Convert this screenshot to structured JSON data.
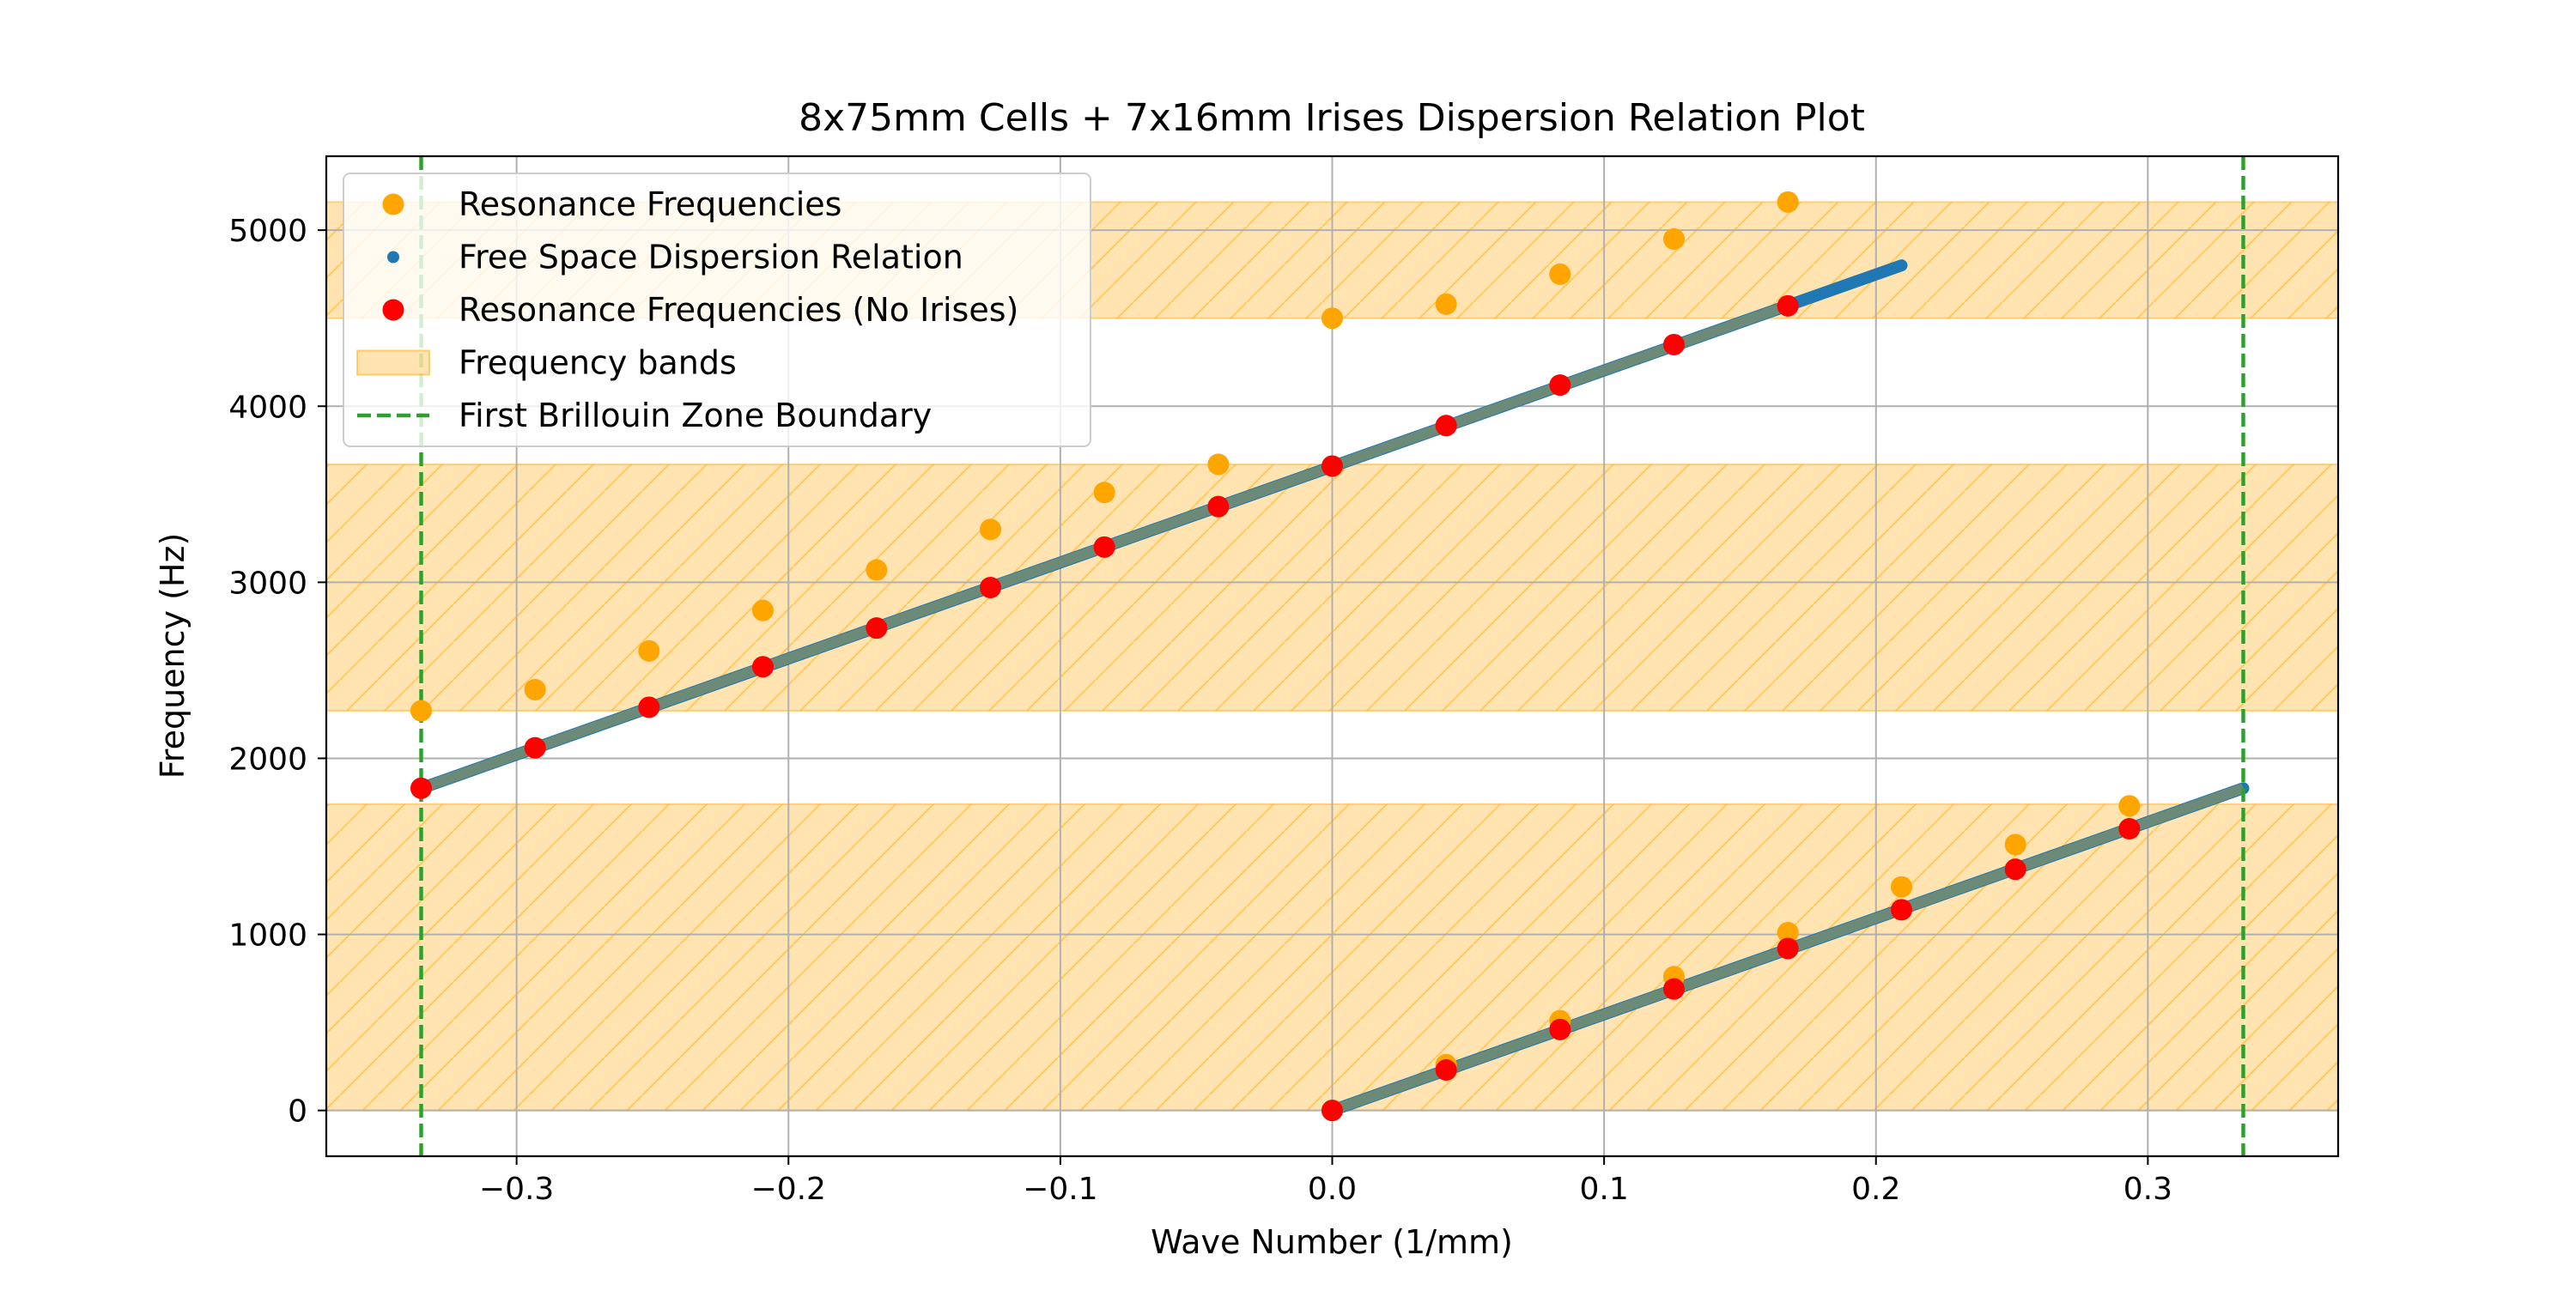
{
  "chart_data": {
    "type": "scatter",
    "title": "8x75mm Cells + 7x16mm Irises Dispersion Relation Plot",
    "xlabel": "Wave Number (1/mm)",
    "ylabel": "Frequency (Hz)",
    "xlim": [
      -0.37,
      0.37
    ],
    "ylim": [
      -260,
      5420
    ],
    "xticks": [
      -0.3,
      -0.2,
      -0.1,
      0.0,
      0.1,
      0.2,
      0.3
    ],
    "xtick_labels": [
      "−0.3",
      "−0.2",
      "−0.1",
      "0.0",
      "0.1",
      "0.2",
      "0.3"
    ],
    "yticks": [
      0,
      1000,
      2000,
      3000,
      4000,
      5000
    ],
    "ytick_labels": [
      "0",
      "1000",
      "2000",
      "3000",
      "4000",
      "5000"
    ],
    "grid": true,
    "legend_position": "top-left",
    "frequency_bands": {
      "name": "Frequency bands",
      "color": "#ffa500",
      "ranges": [
        [
          0,
          1740
        ],
        [
          2270,
          3670
        ],
        [
          4500,
          5160
        ]
      ]
    },
    "brillouin_boundary": {
      "name": "First Brillouin Zone Boundary",
      "color": "#2ca02c",
      "x": [
        -0.3351,
        0.3351
      ]
    },
    "free_space": {
      "name": "Free Space Dispersion Relation",
      "color": "#1f77b4",
      "segments": [
        {
          "x": [
            -0.3351,
            0.2094
          ],
          "y": [
            1830,
            4800
          ]
        },
        {
          "x": [
            0.0,
            0.3351
          ],
          "y": [
            0,
            1830
          ]
        }
      ]
    },
    "series": [
      {
        "name": "Resonance Frequencies",
        "color": "#ffa500",
        "x": [
          -0.3351,
          -0.2932,
          -0.2513,
          -0.2094,
          -0.1676,
          -0.1257,
          -0.0838,
          -0.0419,
          0.0,
          0.0419,
          0.0838,
          0.1257,
          0.1676,
          0.0,
          0.0419,
          0.0838,
          0.1257,
          0.1676,
          0.2094,
          0.2513,
          0.2932
        ],
        "y": [
          2270,
          2390,
          2610,
          2840,
          3070,
          3300,
          3510,
          3670,
          4500,
          4580,
          4750,
          4950,
          5160,
          0,
          260,
          510,
          760,
          1010,
          1270,
          1510,
          1730
        ]
      },
      {
        "name": "Resonance Frequencies (No Irises)",
        "color": "#ff0000",
        "x": [
          -0.3351,
          -0.2932,
          -0.2513,
          -0.2094,
          -0.1676,
          -0.1257,
          -0.0838,
          -0.0419,
          0.0,
          0.0419,
          0.0838,
          0.1257,
          0.1676,
          0.0,
          0.0419,
          0.0838,
          0.1257,
          0.1676,
          0.2094,
          0.2513,
          0.2932
        ],
        "y": [
          1830,
          2060,
          2290,
          2520,
          2740,
          2970,
          3200,
          3430,
          3660,
          3890,
          4120,
          4350,
          4570,
          0,
          230,
          460,
          690,
          920,
          1140,
          1370,
          1600
        ]
      }
    ],
    "legend": [
      {
        "label": "Resonance Frequencies",
        "kind": "dot",
        "color": "#ffa500"
      },
      {
        "label": "Free Space Dispersion Relation",
        "kind": "smalldot",
        "color": "#1f77b4"
      },
      {
        "label": "Resonance Frequencies (No Irises)",
        "kind": "dot",
        "color": "#ff0000"
      },
      {
        "label": "Frequency bands",
        "kind": "band",
        "color": "#ffa500"
      },
      {
        "label": "First Brillouin Zone Boundary",
        "kind": "dashed",
        "color": "#2ca02c"
      }
    ]
  }
}
